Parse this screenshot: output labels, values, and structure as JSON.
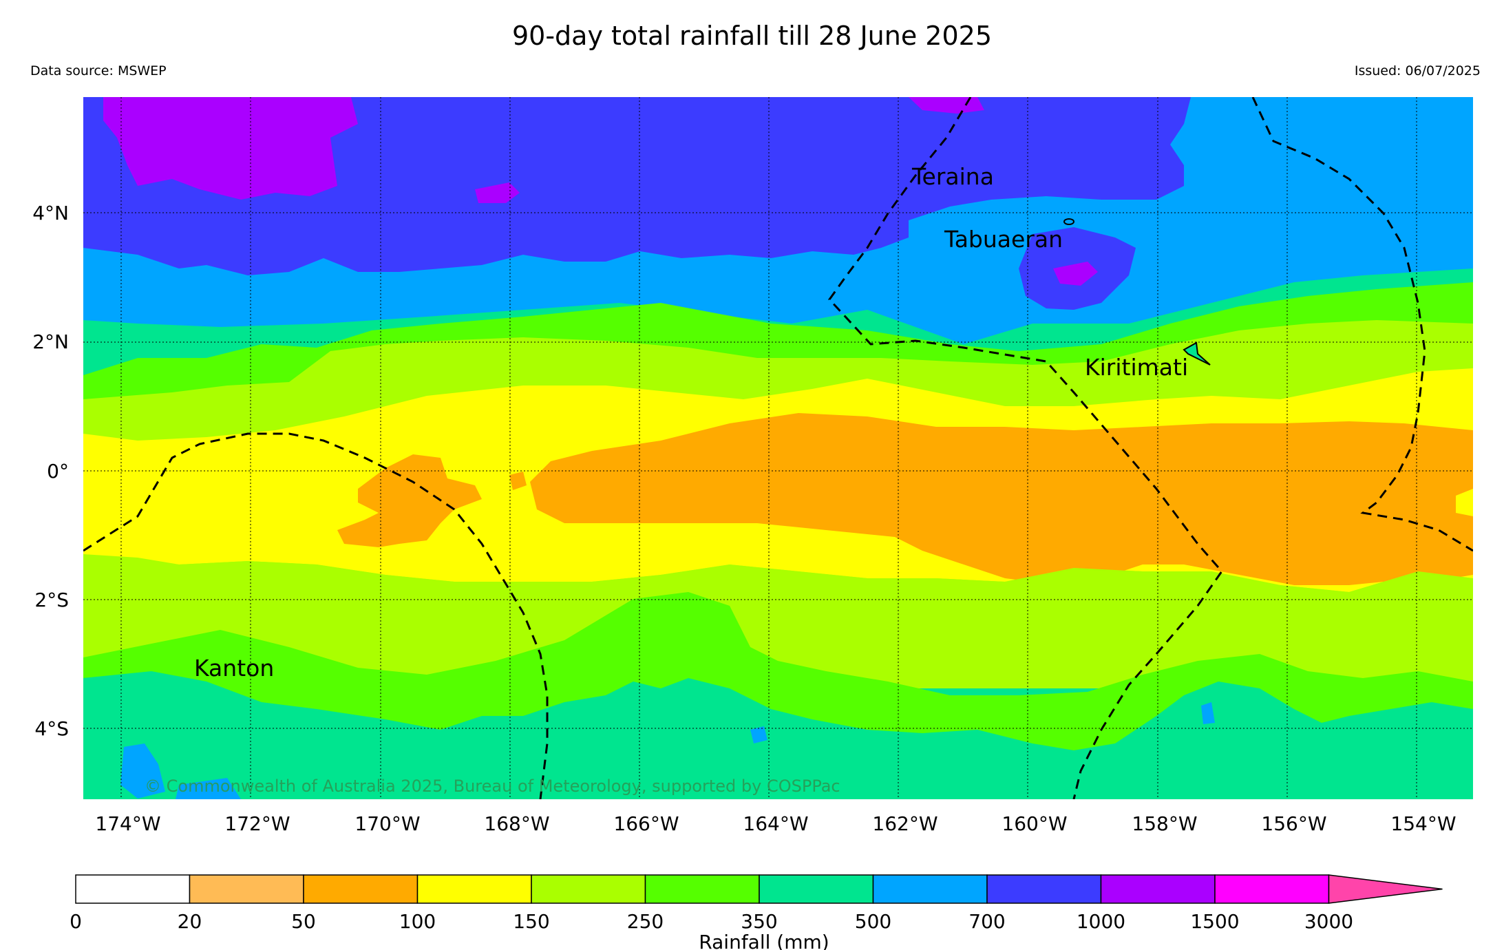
{
  "header": {
    "title": "90-day total rainfall till 28 June 2025",
    "data_source": "Data source: MSWEP",
    "issued": "Issued: 06/07/2025"
  },
  "map": {
    "lat_labels": [
      "4°N",
      "2°N",
      "0°",
      "2°S",
      "4°S"
    ],
    "lon_labels": [
      "174°W",
      "172°W",
      "170°W",
      "168°W",
      "166°W",
      "164°W",
      "162°W",
      "160°W",
      "158°W",
      "156°W",
      "154°W"
    ],
    "places": [
      "Teraina",
      "Tabuaeran",
      "Kiritimati",
      "Kanton"
    ],
    "credit": "© Commonwealth of Australia 2025, Bureau of Meteorology, supported by COSPPac"
  },
  "legend": {
    "title": "Rainfall (mm)",
    "tick_labels": [
      "0",
      "20",
      "50",
      "100",
      "150",
      "250",
      "350",
      "500",
      "700",
      "1000",
      "1500",
      "3000"
    ],
    "colors": [
      "#ffffff",
      "#ffbb55",
      "#ffaa00",
      "#ffff00",
      "#aaff00",
      "#55ff00",
      "#00e58f",
      "#00a5ff",
      "#3c3cff",
      "#aa00ff",
      "#ff00ff",
      "#ff44aa"
    ]
  }
}
